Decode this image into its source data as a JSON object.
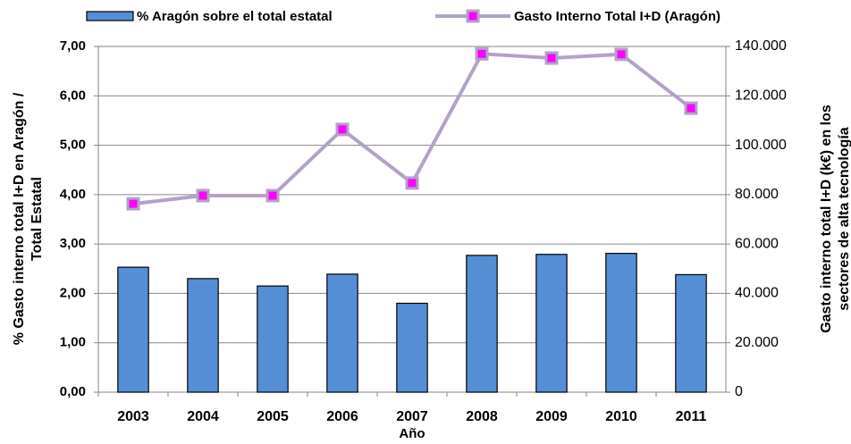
{
  "chart_data": {
    "type": "bar_line",
    "categories": [
      "2003",
      "2004",
      "2005",
      "2006",
      "2007",
      "2008",
      "2009",
      "2010",
      "2011"
    ],
    "series": [
      {
        "name": "% Aragón sobre el total estatal",
        "type": "bar",
        "color": "#558ed5",
        "axis": "y",
        "values": [
          2.53,
          2.3,
          2.15,
          2.39,
          1.8,
          2.77,
          2.79,
          2.81,
          2.38
        ]
      },
      {
        "name": "Gasto Interno Total I+D (Aragón)",
        "type": "line",
        "color": "#b3a2c7",
        "marker_color": "#ff00ff",
        "axis": "y2",
        "values": [
          76300,
          79600,
          79600,
          106400,
          84700,
          137000,
          135300,
          136800,
          115000
        ]
      }
    ],
    "xlabel": "Año",
    "ylabel": [
      "% Gasto interno total I+D en Aragón /",
      "Total Estatal"
    ],
    "y2label": [
      "Gasto interno total I+D (k€) en los",
      "sectores de alta tecnología"
    ],
    "ylim": [
      0,
      7
    ],
    "yticks": [
      {
        "value": 0,
        "label": "0,00"
      },
      {
        "value": 1,
        "label": "1,00"
      },
      {
        "value": 2,
        "label": "2,00"
      },
      {
        "value": 3,
        "label": "3,00"
      },
      {
        "value": 4,
        "label": "4,00"
      },
      {
        "value": 5,
        "label": "5,00"
      },
      {
        "value": 6,
        "label": "6,00"
      },
      {
        "value": 7,
        "label": "7,00"
      }
    ],
    "y2lim": [
      0,
      140000
    ],
    "y2ticks": [
      0,
      {
        "value": 20000,
        "label": "20.000"
      },
      {
        "value": 40000,
        "label": "40.000"
      },
      {
        "value": 60000,
        "label": "60.000"
      },
      {
        "value": 80000,
        "label": "80.000"
      },
      {
        "value": 100000,
        "label": "100.000"
      },
      {
        "value": 120000,
        "label": "120.000"
      },
      {
        "value": 140000,
        "label": "140.000"
      }
    ],
    "grid": true
  }
}
